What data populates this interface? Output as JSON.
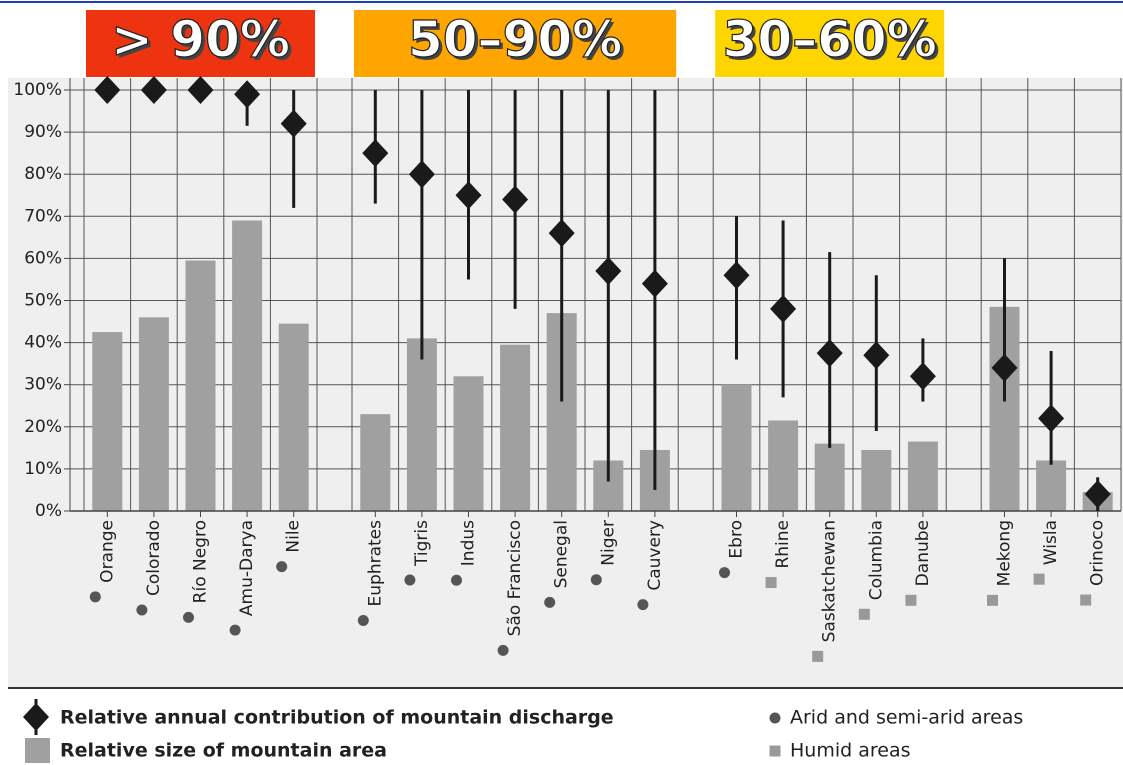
{
  "chart_data": {
    "type": "bar-diamond",
    "groups": [
      {
        "label": "> 90%",
        "color": "#ee3311"
      },
      {
        "label": "50–90%",
        "color": "#ffa500"
      },
      {
        "label": "30–60%",
        "color": "#ffd500"
      },
      {
        "label": null,
        "color": null
      }
    ],
    "categories": [
      "Orange",
      "Colorado",
      "Río Negro",
      "Amu-Darya",
      "Nile",
      "Euphrates",
      "Tigris",
      "Indus",
      "São Francisco",
      "Senegal",
      "Niger",
      "Cauvery",
      "Ebro",
      "Rhine",
      "Saskatchewan",
      "Columbia",
      "Danube",
      "Mekong",
      "Wisla",
      "Orinoco"
    ],
    "group": [
      0,
      0,
      0,
      0,
      0,
      1,
      1,
      1,
      1,
      1,
      1,
      1,
      2,
      2,
      2,
      2,
      2,
      3,
      3,
      3
    ],
    "climate_legend": [
      "Arid and semi-arid areas",
      "Humid areas"
    ],
    "climate_markers": [
      "circle",
      "square"
    ],
    "climate": [
      0,
      0,
      0,
      0,
      0,
      0,
      0,
      0,
      0,
      0,
      0,
      0,
      0,
      1,
      1,
      1,
      1,
      1,
      1,
      1
    ],
    "series": [
      {
        "name": "Relative annual contribution of mountain discharge",
        "color": "#1a1a1a",
        "values": [
          100,
          100,
          100,
          99,
          92,
          85,
          80,
          75,
          74,
          66,
          57,
          54,
          56,
          48,
          37.5,
          37,
          32,
          34,
          22,
          4
        ],
        "low": [
          null,
          null,
          null,
          91.5,
          72,
          73,
          36,
          55,
          48,
          26,
          7,
          5,
          36,
          27,
          15,
          19,
          26,
          26,
          11,
          0
        ],
        "high": [
          null,
          null,
          null,
          100,
          100,
          100,
          100,
          100,
          100,
          100,
          100,
          100,
          70,
          69,
          61.5,
          56,
          41,
          60,
          38,
          8
        ]
      },
      {
        "name": "Relative size of mountain area",
        "color": "#a0a0a0",
        "values": [
          42.5,
          46,
          59.5,
          69,
          44.5,
          23,
          41,
          32,
          39.5,
          47,
          12,
          14.5,
          30,
          21.5,
          16,
          14.5,
          16.5,
          48.5,
          12,
          4.5
        ]
      }
    ],
    "ylim": [
      0,
      100
    ],
    "yticks": [
      {
        "value": 0,
        "label": "0%"
      },
      {
        "value": 10,
        "label": "10%"
      },
      {
        "value": 20,
        "label": "20%"
      },
      {
        "value": 30,
        "label": "30%"
      },
      {
        "value": 40,
        "label": "40%"
      },
      {
        "value": 50,
        "label": "50%"
      },
      {
        "value": 60,
        "label": "60%"
      },
      {
        "value": 70,
        "label": "70%"
      },
      {
        "value": 80,
        "label": "80%"
      },
      {
        "value": 90,
        "label": "90%"
      },
      {
        "value": 100,
        "label": "100%"
      }
    ],
    "grid": true
  }
}
